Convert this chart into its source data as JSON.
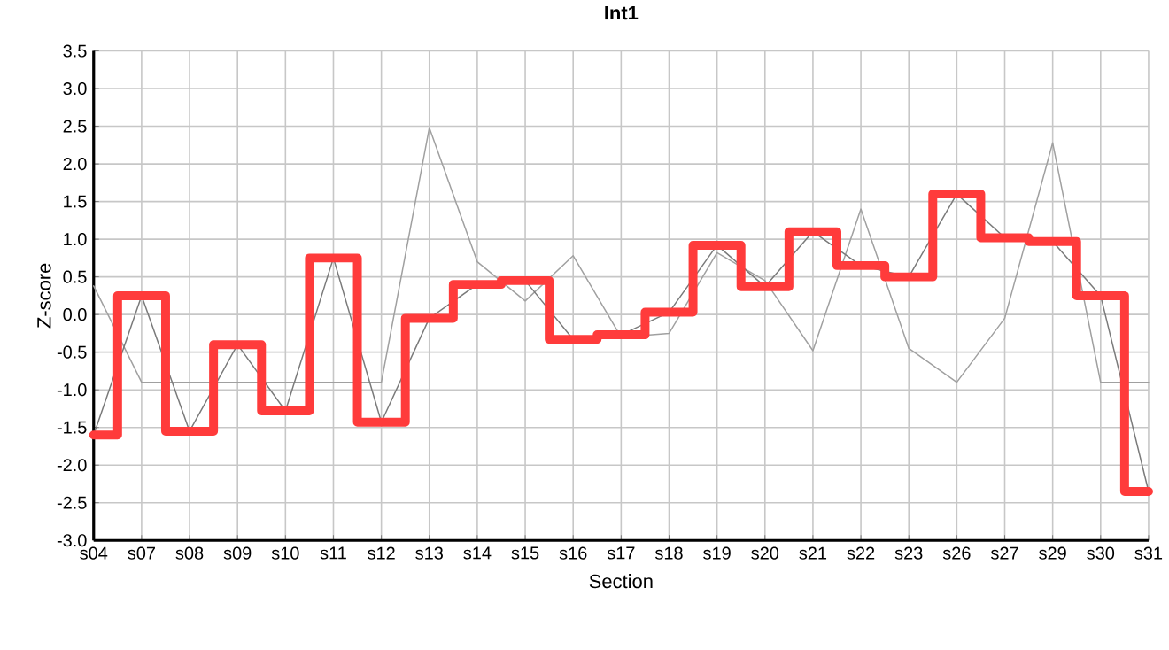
{
  "chart_data": {
    "type": "line",
    "title": "Int1",
    "xlabel": "Section",
    "ylabel": "Z-score",
    "categories": [
      "s04",
      "s07",
      "s08",
      "s09",
      "s10",
      "s11",
      "s12",
      "s13",
      "s14",
      "s15",
      "s16",
      "s17",
      "s18",
      "s19",
      "s20",
      "s21",
      "s22",
      "s23",
      "s26",
      "s27",
      "s29",
      "s30",
      "s31"
    ],
    "series": [
      {
        "color": "#a0a0a0",
        "values": [
          0.38,
          -0.9,
          -0.9,
          -0.9,
          -0.9,
          -0.9,
          -0.9,
          2.48,
          0.7,
          0.18,
          0.78,
          -0.3,
          -0.25,
          0.82,
          0.45,
          -0.48,
          1.4,
          -0.45,
          -0.9,
          -0.05,
          2.28,
          -0.9,
          -0.9
        ]
      },
      {
        "color": "#7a7a7a",
        "values": [
          -1.6,
          0.25,
          -1.55,
          -0.4,
          -1.28,
          0.75,
          -1.43,
          -0.05,
          0.4,
          0.45,
          -0.33,
          -0.27,
          0.03,
          0.92,
          0.37,
          1.1,
          0.65,
          0.5,
          1.6,
          1.02,
          0.97,
          0.25,
          -2.35
        ]
      },
      {
        "type": "step",
        "color": "#ff3b3b",
        "values": [
          -1.6,
          0.25,
          -1.55,
          -0.4,
          -1.28,
          0.75,
          -1.43,
          -0.05,
          0.4,
          0.45,
          -0.33,
          -0.27,
          0.03,
          0.92,
          0.37,
          1.1,
          0.65,
          0.5,
          1.6,
          1.02,
          0.97,
          0.25,
          -2.35
        ]
      }
    ],
    "ylim": [
      -3,
      3.5
    ],
    "yticks": [
      {
        "value": -3,
        "label": "-3.0"
      },
      {
        "value": -2.5,
        "label": "-2.5"
      },
      {
        "value": -2,
        "label": "-2.0"
      },
      {
        "value": -1.5,
        "label": "-1.5"
      },
      {
        "value": -1,
        "label": "-1.0"
      },
      {
        "value": -0.5,
        "label": "-0.5"
      },
      {
        "value": 0,
        "label": "0.0"
      },
      {
        "value": 0.5,
        "label": "0.5"
      },
      {
        "value": 1,
        "label": "1.0"
      },
      {
        "value": 1.5,
        "label": "1.5"
      },
      {
        "value": 2,
        "label": "2.0"
      },
      {
        "value": 2.5,
        "label": "2.5"
      },
      {
        "value": 3,
        "label": "3.0"
      },
      {
        "value": 3.5,
        "label": "3.5"
      }
    ],
    "grid": true,
    "marker": "none",
    "line_style": "solid"
  }
}
